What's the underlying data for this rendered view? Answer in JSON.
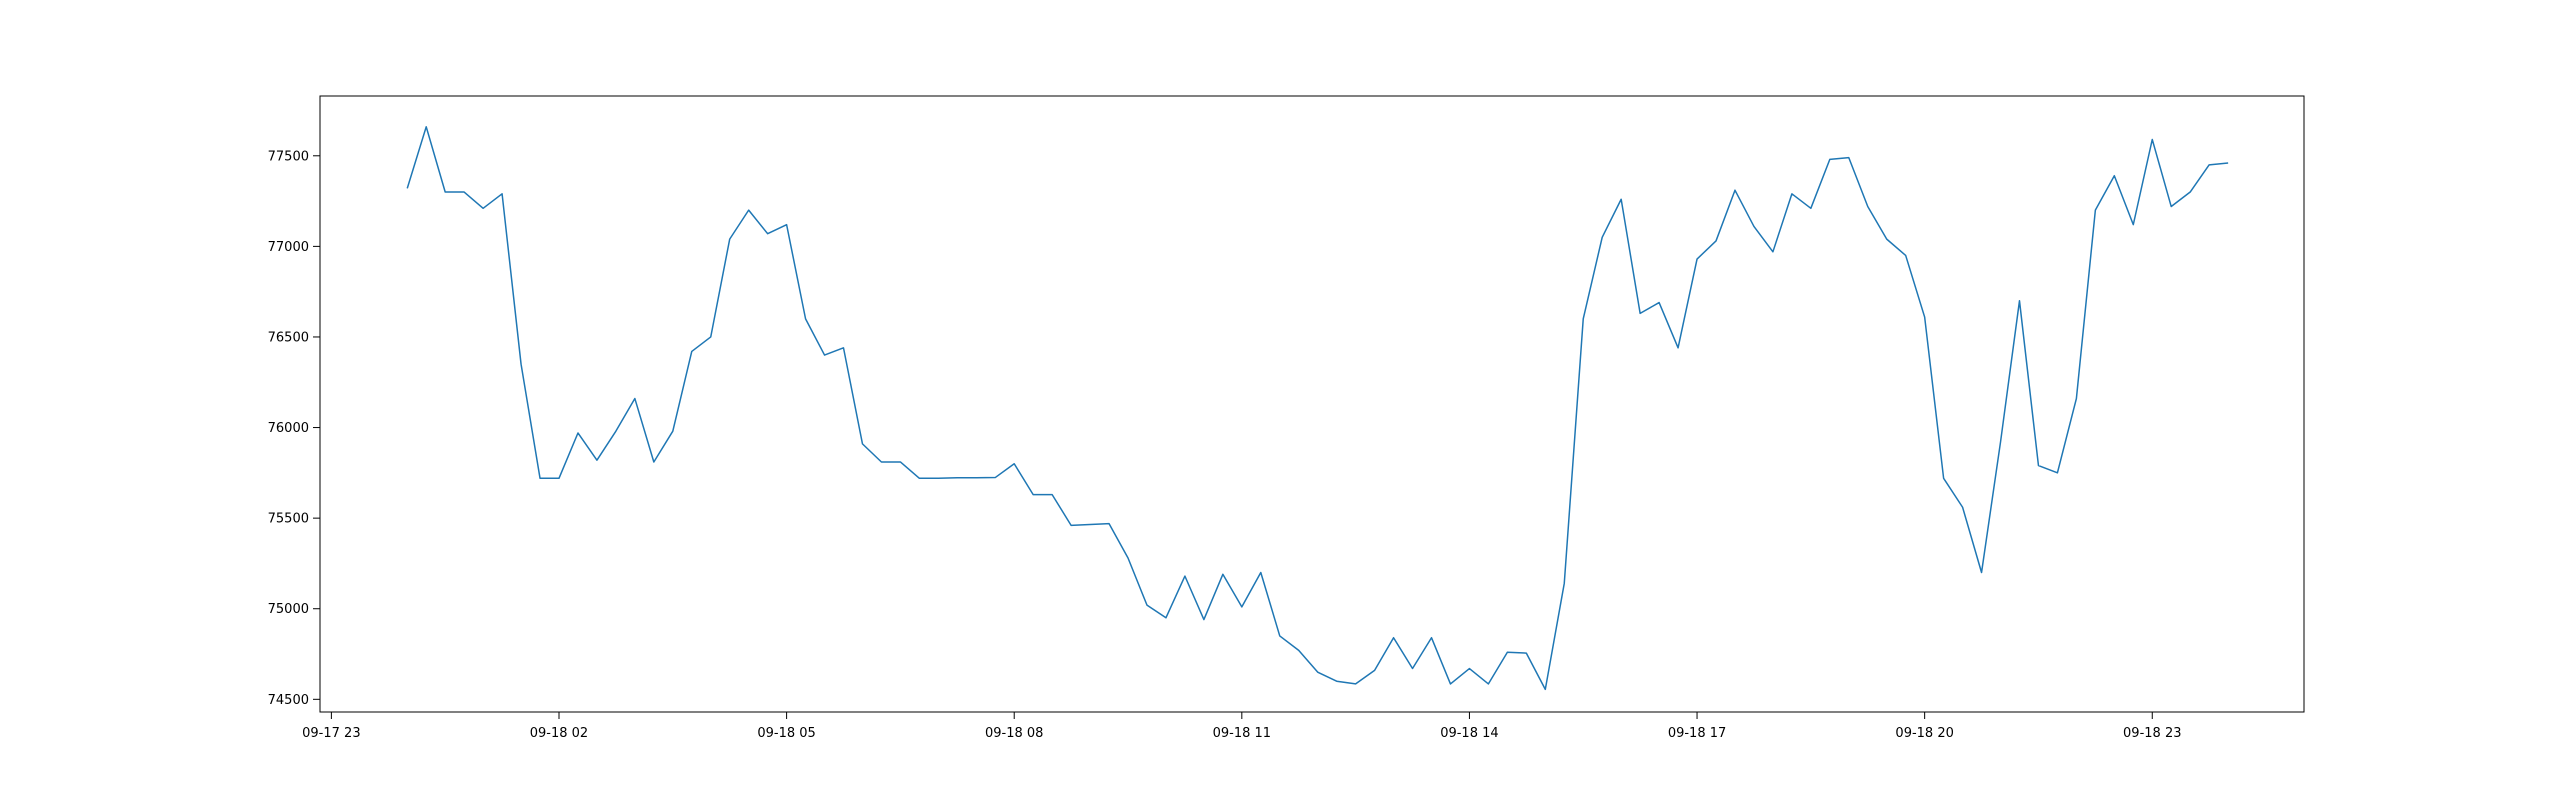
{
  "chart_data": {
    "type": "line",
    "title": "",
    "xlabel": "",
    "ylabel": "",
    "grid": false,
    "line_color": "#1f77b4",
    "x_tick_labels": [
      "09-17 23",
      "09-18 02",
      "09-18 05",
      "09-18 08",
      "09-18 11",
      "09-18 14",
      "09-18 17",
      "09-18 20",
      "09-18 23"
    ],
    "x_tick_hours": [
      0,
      3,
      6,
      9,
      12,
      15,
      18,
      21,
      24
    ],
    "y_ticks": [
      74500,
      75000,
      75500,
      76000,
      76500,
      77000,
      77500
    ],
    "xlim_hours": [
      -0.15,
      26.0
    ],
    "ylim": [
      74430,
      77830
    ],
    "series": [
      {
        "name": "",
        "x_hours": [
          1.0,
          1.25,
          1.5,
          1.75,
          2.0,
          2.25,
          2.5,
          2.75,
          3.0,
          3.25,
          3.5,
          3.75,
          4.0,
          4.25,
          4.5,
          4.75,
          5.0,
          5.25,
          5.5,
          5.75,
          6.0,
          6.25,
          6.5,
          6.75,
          7.0,
          7.25,
          7.5,
          7.75,
          8.0,
          8.25,
          8.5,
          8.75,
          9.0,
          9.25,
          9.5,
          9.75,
          10.0,
          10.25,
          10.5,
          10.75,
          11.0,
          11.25,
          11.5,
          11.75,
          12.0,
          12.25,
          12.5,
          12.75,
          13.0,
          13.25,
          13.5,
          13.75,
          14.0,
          14.25,
          14.5,
          14.75,
          15.0,
          15.25,
          15.5,
          15.75,
          16.0,
          16.25,
          16.5,
          16.75,
          17.0,
          17.25,
          17.5,
          17.75,
          18.0,
          18.25,
          18.5,
          18.75,
          19.0,
          19.25,
          19.5,
          19.75,
          20.0,
          20.25,
          20.5,
          20.75,
          21.0,
          21.25,
          21.5,
          21.75,
          22.0,
          22.25,
          22.5,
          22.75,
          23.0,
          23.25,
          23.5,
          23.75,
          24.0,
          24.25,
          24.5,
          24.75,
          25.0
        ],
        "values": [
          77320,
          77660,
          77300,
          77300,
          77210,
          77290,
          76350,
          75720,
          75720,
          75970,
          75820,
          75980,
          76160,
          75810,
          75980,
          76420,
          76500,
          77040,
          77200,
          77070,
          77120,
          76600,
          76400,
          76440,
          75910,
          75810,
          75810,
          75720,
          75720,
          75723,
          75723,
          75724,
          75800,
          75630,
          75630,
          75460,
          75465,
          75470,
          75280,
          75020,
          74950,
          75180,
          74940,
          75190,
          75010,
          75200,
          74850,
          74770,
          74650,
          74600,
          74585,
          74660,
          74840,
          74670,
          74840,
          74585,
          74670,
          74585,
          74760,
          74755,
          74555,
          75140,
          76600,
          77050,
          77260,
          76630,
          76690,
          76440,
          76930,
          77030,
          77310,
          77110,
          76970,
          77290,
          77210,
          77480,
          77490,
          77220,
          77040,
          76950,
          76610,
          75720,
          75560,
          75200,
          75920,
          76700,
          75790,
          75750,
          76160,
          77200,
          77390,
          77120,
          77590,
          77220,
          77300,
          77450,
          77460
        ]
      }
    ]
  }
}
